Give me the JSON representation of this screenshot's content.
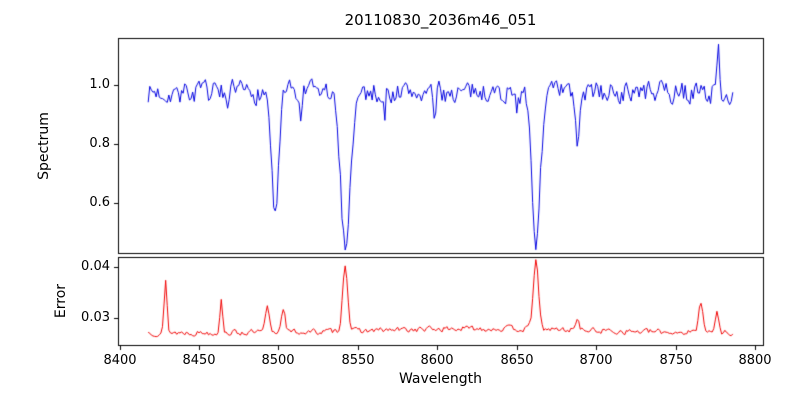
{
  "figure": {
    "background": "#ffffff",
    "frame_color": "#000000",
    "text_color": "#000000"
  },
  "chart_data": {
    "type": "line",
    "title": "20110830_2036m46_051",
    "xlabel": "Wavelength",
    "legend": null,
    "grid": false,
    "x_start": 8418,
    "x_end": 8786,
    "x_step": 1,
    "xlim": [
      8399,
      8805
    ],
    "x_ticks": [
      {
        "value": 8400,
        "label": "8400"
      },
      {
        "value": 8450,
        "label": "8450"
      },
      {
        "value": 8500,
        "label": "8500"
      },
      {
        "value": 8550,
        "label": "8550"
      },
      {
        "value": 8600,
        "label": "8600"
      },
      {
        "value": 8650,
        "label": "8650"
      },
      {
        "value": 8700,
        "label": "8700"
      },
      {
        "value": 8750,
        "label": "8750"
      },
      {
        "value": 8800,
        "label": "8800"
      }
    ],
    "panels": [
      {
        "name": "spectrum",
        "ylabel": "Spectrum",
        "color": "#0000e0",
        "ylim": [
          0.43,
          1.16
        ],
        "y_ticks": [
          {
            "value": 0.6,
            "label": "0.6"
          },
          {
            "value": 0.8,
            "label": "0.8"
          },
          {
            "value": 1.0,
            "label": "1.0"
          }
        ],
        "base": 0.975,
        "noise": {
          "amp": 0.034,
          "ar": 0.35,
          "seed": 7,
          "dip_prob": 0.05,
          "dip_amp": 0.055
        },
        "features": [
          {
            "center": 8468,
            "amp": -0.1,
            "sigma": 1.0
          },
          {
            "center": 8498.0,
            "amp": -0.42,
            "sigma": 2.2
          },
          {
            "center": 8514,
            "amp": -0.09,
            "sigma": 1.0
          },
          {
            "center": 8542.1,
            "amp": -0.51,
            "sigma": 3.1
          },
          {
            "center": 8598,
            "amp": -0.08,
            "sigma": 1.0
          },
          {
            "center": 8662.1,
            "amp": -0.5,
            "sigma": 2.7
          },
          {
            "center": 8688,
            "amp": -0.17,
            "sigma": 1.3
          },
          {
            "center": 8777,
            "amp": 0.135,
            "sigma": 0.8
          }
        ]
      },
      {
        "name": "error",
        "ylabel": "Error",
        "color": "#f00000",
        "ylim": [
          0.0248,
          0.0419
        ],
        "y_ticks": [
          {
            "value": 0.03,
            "label": "0.03"
          },
          {
            "value": 0.04,
            "label": "0.04"
          }
        ],
        "base": 0.0272,
        "noise": {
          "amp": 0.0005,
          "ar": 0.4,
          "seed": 13,
          "dip_prob": 0,
          "dip_amp": 0
        },
        "features": [
          {
            "center": 8630,
            "amp": 0.0008,
            "sigma": 60
          },
          {
            "center": 8429,
            "amp": 0.0098,
            "sigma": 0.9
          },
          {
            "center": 8464,
            "amp": 0.0062,
            "sigma": 0.9
          },
          {
            "center": 8493,
            "amp": 0.0048,
            "sigma": 1.2
          },
          {
            "center": 8503,
            "amp": 0.005,
            "sigma": 1.2
          },
          {
            "center": 8542,
            "amp": 0.013,
            "sigma": 1.6
          },
          {
            "center": 8662,
            "amp": 0.0133,
            "sigma": 1.6
          },
          {
            "center": 8688,
            "amp": 0.0026,
            "sigma": 1.0
          },
          {
            "center": 8766,
            "amp": 0.006,
            "sigma": 1.4
          },
          {
            "center": 8776,
            "amp": 0.0042,
            "sigma": 1.0
          }
        ]
      }
    ]
  }
}
